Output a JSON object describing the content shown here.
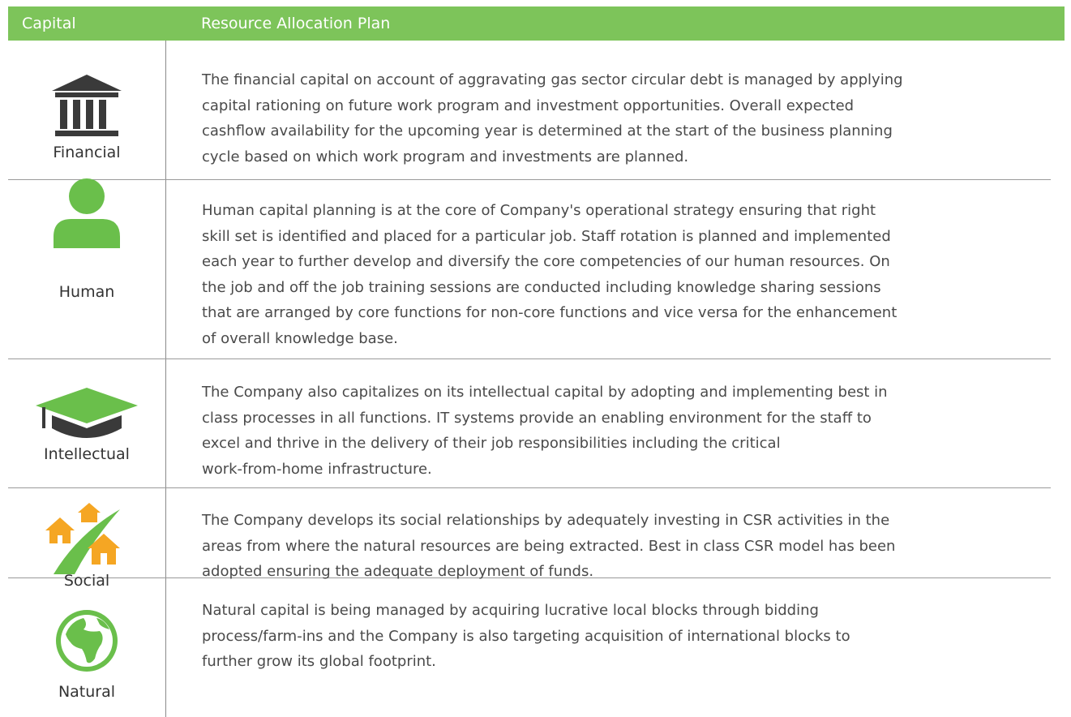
{
  "table": {
    "header": [
      "Capital",
      "Resource Allocation Plan"
    ],
    "rows": [
      {
        "capital": "Financial",
        "plan": [
          "The financial capital on account of aggravating gas sector circular debt is managed by applying",
          "capital rationing on future work program and investment opportunities. Overall expected",
          "cashflow availability for the upcoming year is determined at the start of the business planning",
          "cycle based on which work program and investments are planned."
        ]
      },
      {
        "capital": "Human",
        "plan": [
          "Human capital planning is at the core of Company's operational strategy ensuring that right",
          "skill set is identified and placed for a particular job. Staff rotation is planned and implemented",
          "each year to further develop and diversify the core competencies of our human resources. On",
          "the job and off the job training sessions are conducted including knowledge sharing sessions",
          "that are arranged by core functions for non-core functions and vice versa for the enhancement",
          "of overall knowledge base."
        ]
      },
      {
        "capital": "Intellectual",
        "plan": [
          "The Company also capitalizes on its intellectual capital by adopting and implementing best in",
          "class processes in all functions. IT systems provide an enabling environment for the staff to",
          "excel and thrive in the delivery of their job responsibilities including the critical",
          "work-from-home infrastructure."
        ]
      },
      {
        "capital": "Social",
        "plan": [
          "The Company develops its social relationships by adequately investing in CSR activities in the",
          "areas from where the natural resources are being extracted. Best in class CSR model has been",
          "adopted ensuring the adequate deployment of funds."
        ]
      },
      {
        "capital": "Natural",
        "plan": [
          "Natural capital is being managed by acquiring lucrative local blocks through bidding",
          "process/farm-ins and the Company is also targeting acquisition of international blocks to",
          "further grow its global footprint."
        ]
      }
    ]
  }
}
